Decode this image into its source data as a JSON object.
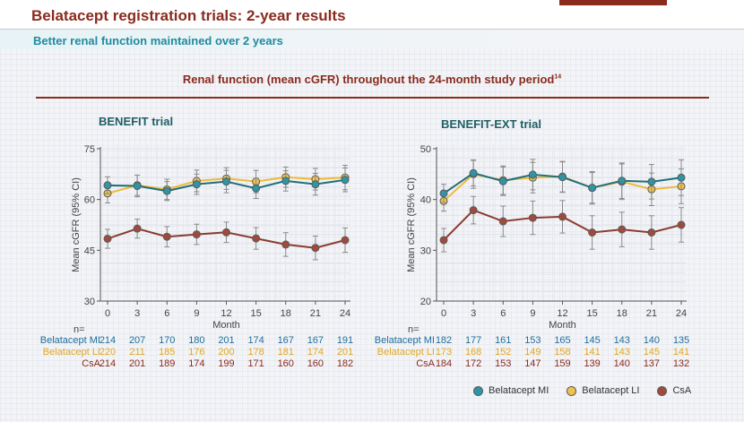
{
  "page": {
    "title": "Belatacept registration trials: 2-year results",
    "subtitle": "Better renal function maintained over 2 years",
    "chart_heading": "Renal function (mean cGFR) throughout the 24-month study period",
    "chart_heading_ref": "14"
  },
  "colors": {
    "mi": "#2d96a6",
    "li": "#f0c24a",
    "csa": "#a04a3c",
    "line_mi": "#1f6f7a",
    "line_li": "#f0b93a",
    "line_csa": "#8a3b30"
  },
  "chart_data": [
    {
      "type": "line",
      "title": "BENEFIT trial",
      "xlabel": "Month",
      "ylabel": "Mean cGFR (95% CI)",
      "x": [
        0,
        3,
        6,
        9,
        12,
        15,
        18,
        21,
        24
      ],
      "xlim": [
        0,
        24
      ],
      "ylim": [
        30,
        75
      ],
      "yticks": [
        30,
        45,
        60,
        75
      ],
      "series": [
        {
          "name": "Belatacept MI",
          "key": "mi",
          "values": [
            64.2,
            64.0,
            62.5,
            64.5,
            65.3,
            63.3,
            65.5,
            64.5,
            65.8
          ],
          "ci": [
            2.5,
            3.2,
            2.8,
            3.0,
            3.3,
            3.0,
            3.0,
            3.2,
            3.5
          ]
        },
        {
          "name": "Belatacept LI",
          "key": "li",
          "values": [
            61.8,
            64.2,
            63.0,
            65.5,
            66.2,
            65.3,
            66.6,
            66.0,
            66.5
          ],
          "ci": [
            2.8,
            3.0,
            3.0,
            3.2,
            3.2,
            3.3,
            3.0,
            3.2,
            3.6
          ]
        },
        {
          "name": "CsA",
          "key": "csa",
          "values": [
            48.4,
            51.4,
            49.0,
            49.7,
            50.3,
            48.5,
            46.7,
            45.7,
            48.0
          ],
          "ci": [
            2.8,
            2.8,
            3.0,
            3.0,
            3.0,
            3.2,
            3.5,
            3.5,
            3.6
          ]
        }
      ],
      "n_header": "n=",
      "n_rows": [
        {
          "label": "Belatacept MI",
          "key": "mi",
          "values": [
            "214",
            "207",
            "170",
            "180",
            "201",
            "174",
            "167",
            "167",
            "191"
          ]
        },
        {
          "label": "Belatacept LI",
          "key": "li",
          "values": [
            "220",
            "211",
            "185",
            "176",
            "200",
            "178",
            "181",
            "174",
            "201"
          ]
        },
        {
          "label": "CsA",
          "key": "csa",
          "values": [
            "214",
            "201",
            "189",
            "174",
            "199",
            "171",
            "160",
            "160",
            "182"
          ]
        }
      ]
    },
    {
      "type": "line",
      "title": "BENEFIT-EXT trial",
      "xlabel": "Month",
      "ylabel": "Mean cGFR (95% CI)",
      "x": [
        0,
        3,
        6,
        9,
        12,
        15,
        18,
        21,
        24
      ],
      "xlim": [
        0,
        24
      ],
      "ylim": [
        20,
        50
      ],
      "yticks": [
        20,
        30,
        40,
        50
      ],
      "series": [
        {
          "name": "Belatacept MI",
          "key": "mi",
          "values": [
            41.2,
            45.2,
            43.6,
            44.9,
            44.4,
            42.3,
            43.7,
            43.5,
            44.3
          ],
          "ci": [
            1.8,
            2.5,
            2.8,
            3.0,
            3.0,
            3.2,
            3.5,
            3.4,
            3.5
          ]
        },
        {
          "name": "Belatacept LI",
          "key": "li",
          "values": [
            39.7,
            45.0,
            43.8,
            44.3,
            44.5,
            42.3,
            43.5,
            42.0,
            42.6
          ],
          "ci": [
            2.0,
            2.8,
            2.8,
            3.0,
            3.0,
            3.0,
            3.5,
            3.2,
            3.4
          ]
        },
        {
          "name": "CsA",
          "key": "csa",
          "values": [
            32.0,
            37.9,
            35.7,
            36.4,
            36.6,
            33.5,
            34.1,
            33.5,
            35.0
          ],
          "ci": [
            2.3,
            2.7,
            3.0,
            3.3,
            3.2,
            3.3,
            3.4,
            3.3,
            3.4
          ]
        }
      ],
      "n_header": "n=",
      "n_rows": [
        {
          "label": "Belatacept MI",
          "key": "mi",
          "values": [
            "182",
            "177",
            "161",
            "153",
            "165",
            "145",
            "143",
            "140",
            "135"
          ]
        },
        {
          "label": "Belatacept LI",
          "key": "li",
          "values": [
            "173",
            "168",
            "152",
            "149",
            "158",
            "141",
            "143",
            "145",
            "141"
          ]
        },
        {
          "label": "CsA",
          "key": "csa",
          "values": [
            "184",
            "172",
            "153",
            "147",
            "159",
            "139",
            "140",
            "137",
            "132"
          ]
        }
      ]
    }
  ],
  "legend": [
    {
      "label": "Belatacept MI",
      "key": "mi"
    },
    {
      "label": "Belatacept LI",
      "key": "li"
    },
    {
      "label": "CsA",
      "key": "csa"
    }
  ]
}
